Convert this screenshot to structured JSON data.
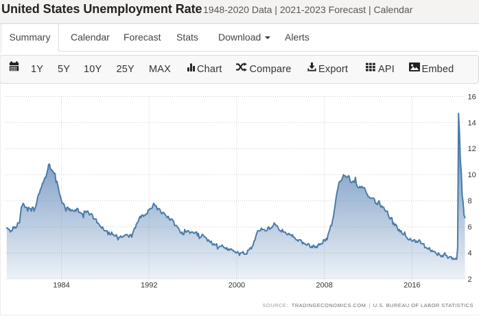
{
  "header": {
    "title": "United States Unemployment Rate",
    "subtitle": "1948-2020 Data | 2021-2023 Forecast | Calendar"
  },
  "tabs": [
    {
      "label": "Summary",
      "active": true
    },
    {
      "label": "Calendar"
    },
    {
      "label": "Forecast"
    },
    {
      "label": "Stats"
    },
    {
      "label": "Download",
      "caret": true
    },
    {
      "label": "Alerts"
    }
  ],
  "toolbar": {
    "items": [
      {
        "icon": "calendar-icon",
        "label": ""
      },
      {
        "label": "1Y"
      },
      {
        "label": "5Y"
      },
      {
        "label": "10Y"
      },
      {
        "label": "25Y"
      },
      {
        "label": "MAX"
      },
      {
        "icon": "bar-chart-icon",
        "label": "Chart"
      },
      {
        "icon": "compare-icon",
        "label": "Compare"
      },
      {
        "icon": "export-icon",
        "label": "Export"
      },
      {
        "icon": "api-icon",
        "label": "API"
      },
      {
        "icon": "embed-icon",
        "label": "Embed"
      }
    ]
  },
  "source_bar": {
    "prefix": "SOURCE:",
    "source": "TRADINGECONOMICS.COM",
    "separator": "|",
    "attribution": "U.S. BUREAU OF LABOR STATISTICS"
  },
  "chart_data": {
    "type": "area",
    "title": "United States Unemployment Rate",
    "frequency": "monthly",
    "x_start_year": 1979,
    "x_start_month": 1,
    "x_end_year": 2020,
    "x_end_month": 11,
    "unit": "percent",
    "values": [
      5.9,
      5.9,
      5.8,
      5.8,
      5.6,
      5.7,
      5.7,
      6.0,
      5.9,
      6.0,
      5.9,
      6.0,
      6.3,
      6.3,
      6.3,
      6.9,
      7.5,
      7.6,
      7.8,
      7.7,
      7.5,
      7.5,
      7.5,
      7.2,
      7.5,
      7.4,
      7.4,
      7.2,
      7.5,
      7.5,
      7.2,
      7.4,
      7.6,
      7.9,
      8.3,
      8.5,
      8.6,
      8.9,
      9.0,
      9.3,
      9.4,
      9.6,
      9.8,
      9.8,
      10.1,
      10.4,
      10.8,
      10.8,
      10.4,
      10.4,
      10.3,
      10.2,
      10.1,
      10.1,
      9.4,
      9.5,
      9.2,
      8.8,
      8.5,
      8.3,
      8.0,
      7.8,
      7.8,
      7.7,
      7.4,
      7.2,
      7.5,
      7.5,
      7.3,
      7.4,
      7.2,
      7.3,
      7.3,
      7.2,
      7.2,
      7.3,
      7.2,
      7.4,
      7.4,
      7.1,
      7.1,
      7.1,
      7.0,
      7.0,
      6.7,
      7.2,
      7.2,
      7.1,
      7.2,
      7.2,
      7.0,
      6.9,
      7.0,
      7.0,
      6.9,
      6.6,
      6.6,
      6.6,
      6.6,
      6.3,
      6.3,
      6.2,
      6.1,
      6.0,
      5.9,
      6.0,
      5.8,
      5.7,
      5.7,
      5.7,
      5.7,
      5.4,
      5.6,
      5.4,
      5.4,
      5.6,
      5.4,
      5.4,
      5.3,
      5.3,
      5.4,
      5.2,
      5.0,
      5.2,
      5.2,
      5.3,
      5.2,
      5.2,
      5.3,
      5.3,
      5.4,
      5.4,
      5.4,
      5.3,
      5.2,
      5.4,
      5.4,
      5.2,
      5.5,
      5.7,
      5.9,
      5.9,
      6.2,
      6.3,
      6.4,
      6.6,
      6.8,
      6.7,
      6.9,
      6.9,
      6.8,
      6.9,
      6.9,
      7.0,
      7.0,
      7.3,
      7.3,
      7.4,
      7.4,
      7.4,
      7.6,
      7.8,
      7.7,
      7.6,
      7.6,
      7.3,
      7.4,
      7.4,
      7.3,
      7.1,
      7.0,
      7.1,
      7.1,
      7.0,
      6.9,
      6.8,
      6.7,
      6.8,
      6.6,
      6.5,
      6.6,
      6.6,
      6.5,
      6.4,
      6.1,
      6.1,
      6.1,
      6.0,
      5.9,
      5.8,
      5.6,
      5.5,
      5.6,
      5.4,
      5.4,
      5.8,
      5.6,
      5.6,
      5.7,
      5.7,
      5.6,
      5.5,
      5.6,
      5.6,
      5.6,
      5.5,
      5.5,
      5.6,
      5.6,
      5.3,
      5.5,
      5.1,
      5.2,
      5.2,
      5.4,
      5.4,
      5.3,
      5.2,
      5.2,
      5.1,
      4.9,
      5.0,
      4.9,
      4.8,
      4.9,
      4.7,
      4.6,
      4.7,
      4.6,
      4.6,
      4.7,
      4.3,
      4.4,
      4.5,
      4.5,
      4.5,
      4.6,
      4.5,
      4.4,
      4.4,
      4.3,
      4.4,
      4.2,
      4.3,
      4.2,
      4.3,
      4.3,
      4.2,
      4.2,
      4.1,
      4.1,
      4.0,
      4.0,
      4.1,
      4.0,
      3.8,
      4.0,
      4.0,
      4.0,
      4.1,
      3.9,
      3.9,
      3.9,
      3.9,
      4.2,
      4.2,
      4.3,
      4.4,
      4.3,
      4.5,
      4.6,
      4.9,
      5.0,
      5.3,
      5.5,
      5.7,
      5.7,
      5.7,
      5.7,
      5.9,
      5.8,
      5.8,
      5.8,
      5.7,
      5.7,
      5.7,
      5.9,
      6.0,
      5.8,
      5.9,
      5.9,
      6.0,
      6.1,
      6.3,
      6.2,
      6.1,
      6.1,
      6.0,
      5.8,
      5.7,
      5.7,
      5.6,
      5.8,
      5.6,
      5.6,
      5.6,
      5.5,
      5.4,
      5.4,
      5.5,
      5.4,
      5.4,
      5.3,
      5.4,
      5.2,
      5.2,
      5.1,
      5.0,
      5.0,
      4.9,
      5.0,
      5.0,
      5.0,
      4.9,
      4.7,
      4.8,
      4.7,
      4.7,
      4.6,
      4.6,
      4.7,
      4.7,
      4.5,
      4.4,
      4.5,
      4.4,
      4.6,
      4.5,
      4.4,
      4.5,
      4.4,
      4.6,
      4.7,
      4.6,
      4.7,
      4.7,
      4.7,
      5.0,
      5.0,
      4.9,
      5.1,
      5.0,
      5.4,
      5.6,
      5.8,
      6.1,
      6.1,
      6.5,
      6.8,
      7.3,
      7.8,
      8.3,
      8.7,
      9.0,
      9.4,
      9.5,
      9.5,
      9.6,
      9.8,
      10.0,
      9.9,
      9.9,
      9.8,
      9.8,
      9.9,
      9.9,
      9.6,
      9.4,
      9.4,
      9.5,
      9.5,
      9.4,
      9.8,
      9.3,
      9.1,
      9.0,
      9.0,
      9.1,
      9.0,
      9.1,
      9.0,
      9.0,
      9.0,
      8.8,
      8.6,
      8.5,
      8.3,
      8.3,
      8.2,
      8.2,
      8.2,
      8.2,
      8.2,
      8.1,
      7.8,
      7.8,
      7.7,
      7.9,
      8.0,
      7.7,
      7.5,
      7.6,
      7.5,
      7.5,
      7.3,
      7.2,
      7.2,
      7.2,
      6.9,
      6.7,
      6.6,
      6.7,
      6.7,
      6.2,
      6.3,
      6.1,
      6.2,
      6.1,
      5.9,
      5.7,
      5.8,
      5.6,
      5.7,
      5.5,
      5.4,
      5.4,
      5.6,
      5.3,
      5.2,
      5.1,
      5.0,
      5.0,
      5.1,
      5.0,
      4.9,
      4.9,
      5.0,
      5.0,
      4.8,
      4.9,
      4.8,
      4.9,
      5.0,
      4.9,
      4.7,
      4.7,
      4.7,
      4.7,
      4.4,
      4.4,
      4.4,
      4.3,
      4.3,
      4.4,
      4.2,
      4.1,
      4.2,
      4.1,
      4.1,
      4.1,
      4.0,
      3.9,
      3.8,
      4.0,
      3.9,
      3.8,
      3.7,
      3.8,
      3.7,
      3.9,
      4.0,
      3.8,
      3.8,
      3.6,
      3.6,
      3.7,
      3.7,
      3.7,
      3.5,
      3.6,
      3.5,
      3.5,
      3.6,
      3.5,
      4.4,
      14.7,
      13.3,
      11.1,
      10.2,
      8.4,
      7.9,
      6.9,
      6.7
    ],
    "x_ticks": [
      1984,
      1992,
      2000,
      2008,
      2016
    ],
    "y_ticks": [
      2,
      4,
      6,
      8,
      10,
      12,
      14,
      16
    ],
    "ylim": [
      2,
      16
    ],
    "xlim": [
      1978.89,
      2020.8333
    ],
    "grid": "dotted",
    "legend": "off",
    "line_color": "#4a7aa8",
    "fill_top_color": "rgba(69,117,172,0.90)",
    "fill_bottom_color": "rgba(69,117,172,0.10)",
    "grid_color": "#cccccc",
    "label_color": "#333333"
  }
}
